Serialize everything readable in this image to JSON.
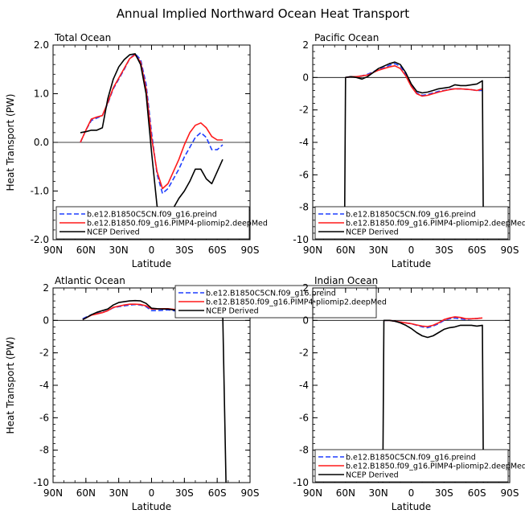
{
  "title": "Annual Implied Northward Ocean Heat Transport",
  "colors": {
    "preind": "#1f3fff",
    "pliomip": "#ff1a1a",
    "ncep": "#000000"
  },
  "chart_data": [
    {
      "type": "line",
      "title": "Total Ocean",
      "xlabel": "Latitude",
      "ylabel": "Heat Transport (PW)",
      "xlim": [
        -90,
        90
      ],
      "ylim": [
        -2,
        2
      ],
      "xticks": [
        "90N",
        "60N",
        "30N",
        "0",
        "30S",
        "60S",
        "90S"
      ],
      "yticks": [
        "2.0",
        "1.0",
        "0.0",
        "-1.0",
        "-2.0"
      ],
      "legend_position": "bottom-left",
      "series": [
        {
          "name": "b.e12.B1850C5CN.f09_g16.preind",
          "style": "dashed",
          "color": "#1f3fff",
          "x": [
            -65,
            -60,
            -55,
            -50,
            -45,
            -40,
            -35,
            -30,
            -25,
            -20,
            -15,
            -10,
            -5,
            0,
            5,
            10,
            15,
            20,
            25,
            30,
            35,
            40,
            45,
            50,
            55,
            60,
            65
          ],
          "y": [
            0.0,
            0.25,
            0.45,
            0.5,
            0.55,
            0.8,
            1.1,
            1.3,
            1.5,
            1.72,
            1.82,
            1.7,
            1.2,
            0.2,
            -0.65,
            -1.05,
            -0.95,
            -0.75,
            -0.55,
            -0.3,
            -0.1,
            0.1,
            0.2,
            0.1,
            -0.15,
            -0.15,
            -0.05
          ]
        },
        {
          "name": "b.e12.B1850.f09_g16.PIMP4-pliomip2.deepMed",
          "style": "solid",
          "color": "#ff1a1a",
          "x": [
            -65,
            -60,
            -55,
            -50,
            -45,
            -40,
            -35,
            -30,
            -25,
            -20,
            -15,
            -10,
            -5,
            0,
            5,
            10,
            15,
            20,
            25,
            30,
            35,
            40,
            45,
            50,
            55,
            60,
            65
          ],
          "y": [
            0.0,
            0.25,
            0.48,
            0.52,
            0.55,
            0.82,
            1.12,
            1.32,
            1.52,
            1.72,
            1.8,
            1.65,
            1.1,
            0.1,
            -0.6,
            -0.95,
            -0.85,
            -0.6,
            -0.35,
            -0.05,
            0.2,
            0.35,
            0.4,
            0.3,
            0.12,
            0.05,
            0.05
          ]
        },
        {
          "name": "NCEP Derived",
          "style": "solid",
          "color": "#000000",
          "x": [
            -65,
            -60,
            -55,
            -50,
            -45,
            -40,
            -35,
            -30,
            -25,
            -20,
            -15,
            -10,
            -5,
            0,
            5,
            10,
            15,
            20,
            25,
            30,
            35,
            40,
            45,
            50,
            55,
            60,
            65
          ],
          "y": [
            0.2,
            0.22,
            0.25,
            0.25,
            0.3,
            0.9,
            1.3,
            1.55,
            1.7,
            1.8,
            1.82,
            1.6,
            1.0,
            -0.2,
            -1.3,
            -1.65,
            -1.6,
            -1.35,
            -1.15,
            -1.0,
            -0.8,
            -0.55,
            -0.55,
            -0.75,
            -0.85,
            -0.6,
            -0.35
          ]
        }
      ]
    },
    {
      "type": "line",
      "title": "Pacific Ocean",
      "xlabel": "Latitude",
      "ylabel": "",
      "xlim": [
        -90,
        90
      ],
      "ylim": [
        -10,
        2
      ],
      "xticks": [
        "90N",
        "60N",
        "30N",
        "0",
        "30S",
        "60S",
        "90S"
      ],
      "yticks": [
        "2",
        "0",
        "-2",
        "-4",
        "-6",
        "-8",
        "-10"
      ],
      "legend_position": "bottom-left",
      "series": [
        {
          "name": "b.e12.B1850C5CN.f09_g16.preind",
          "style": "dashed",
          "color": "#1f3fff",
          "x": [
            -60,
            -55,
            -50,
            -45,
            -40,
            -35,
            -30,
            -25,
            -20,
            -15,
            -10,
            -5,
            0,
            5,
            10,
            15,
            20,
            25,
            30,
            35,
            40,
            45,
            50,
            55,
            60,
            65
          ],
          "y": [
            0.0,
            0.05,
            0.05,
            0.1,
            0.2,
            0.35,
            0.5,
            0.6,
            0.75,
            0.85,
            0.7,
            0.2,
            -0.5,
            -0.95,
            -1.1,
            -1.05,
            -0.95,
            -0.85,
            -0.8,
            -0.72,
            -0.7,
            -0.7,
            -0.72,
            -0.75,
            -0.8,
            -0.8
          ]
        },
        {
          "name": "b.e12.B1850.f09_g16.PIMP4-pliomip2.deepMed",
          "style": "solid",
          "color": "#ff1a1a",
          "x": [
            -60,
            -55,
            -50,
            -45,
            -40,
            -35,
            -30,
            -25,
            -20,
            -15,
            -10,
            -5,
            0,
            5,
            10,
            15,
            20,
            25,
            30,
            35,
            40,
            45,
            50,
            55,
            60,
            65
          ],
          "y": [
            0.0,
            0.05,
            0.05,
            0.1,
            0.15,
            0.3,
            0.45,
            0.55,
            0.65,
            0.72,
            0.55,
            0.1,
            -0.55,
            -1.0,
            -1.15,
            -1.1,
            -1.0,
            -0.9,
            -0.82,
            -0.75,
            -0.7,
            -0.7,
            -0.72,
            -0.75,
            -0.8,
            -0.7
          ]
        },
        {
          "name": "NCEP Derived",
          "style": "solid",
          "color": "#000000",
          "x": [
            -61,
            -60,
            -55,
            -50,
            -45,
            -40,
            -35,
            -30,
            -25,
            -20,
            -15,
            -10,
            -5,
            0,
            5,
            10,
            15,
            20,
            25,
            30,
            35,
            40,
            45,
            50,
            55,
            60,
            65,
            66
          ],
          "y": [
            -10,
            0.0,
            0.05,
            0.0,
            -0.1,
            0.05,
            0.3,
            0.55,
            0.7,
            0.85,
            0.95,
            0.8,
            0.3,
            -0.4,
            -0.85,
            -0.95,
            -0.9,
            -0.8,
            -0.7,
            -0.65,
            -0.6,
            -0.45,
            -0.5,
            -0.5,
            -0.45,
            -0.4,
            -0.2,
            -10
          ]
        }
      ]
    },
    {
      "type": "line",
      "title": "Atlantic Ocean",
      "xlabel": "Latitude",
      "ylabel": "Heat Transport (PW)",
      "xlim": [
        -90,
        90
      ],
      "ylim": [
        -10,
        2
      ],
      "xticks": [
        "90N",
        "60N",
        "30N",
        "0",
        "30S",
        "60S",
        "90S"
      ],
      "yticks": [
        "2",
        "0",
        "-2",
        "-4",
        "-6",
        "-8",
        "-10"
      ],
      "legend_position": "top-right",
      "series": [
        {
          "name": "b.e12.B1850C5CN.f09_g16.preind",
          "style": "dashed",
          "color": "#1f3fff",
          "x": [
            -63,
            -60,
            -55,
            -50,
            -45,
            -40,
            -35,
            -30,
            -25,
            -20,
            -15,
            -10,
            -5,
            0,
            5,
            10,
            15,
            20,
            25,
            30,
            35,
            40,
            45,
            50,
            55,
            60,
            65
          ],
          "y": [
            0.1,
            0.2,
            0.35,
            0.42,
            0.5,
            0.6,
            0.78,
            0.85,
            0.9,
            0.95,
            0.98,
            0.95,
            0.85,
            0.6,
            0.6,
            0.62,
            0.65,
            0.6,
            0.55,
            0.6,
            0.65,
            0.72,
            0.75,
            0.7,
            0.72,
            0.78,
            0.72
          ]
        },
        {
          "name": "b.e12.B1850.f09_g16.PIMP4-pliomip2.deepMed",
          "style": "solid",
          "color": "#ff1a1a",
          "x": [
            -63,
            -60,
            -55,
            -50,
            -45,
            -40,
            -35,
            -30,
            -25,
            -20,
            -15,
            -10,
            -5,
            0,
            5,
            10,
            15,
            20,
            25,
            30,
            35,
            40,
            45,
            50,
            55,
            60,
            65
          ],
          "y": [
            0.05,
            0.15,
            0.32,
            0.4,
            0.48,
            0.6,
            0.8,
            0.88,
            0.95,
            1.0,
            1.0,
            0.98,
            0.9,
            0.7,
            0.7,
            0.72,
            0.72,
            0.68,
            0.65,
            0.7,
            0.75,
            0.8,
            0.85,
            0.82,
            0.82,
            0.85,
            0.8
          ]
        },
        {
          "name": "NCEP Derived",
          "style": "solid",
          "color": "#000000",
          "x": [
            -63,
            -60,
            -55,
            -50,
            -45,
            -40,
            -35,
            -30,
            -25,
            -20,
            -15,
            -10,
            -5,
            0,
            5,
            10,
            15,
            20,
            25,
            30,
            35,
            40,
            45,
            50,
            55,
            60,
            65,
            68
          ],
          "y": [
            0.05,
            0.15,
            0.35,
            0.5,
            0.6,
            0.7,
            0.95,
            1.1,
            1.15,
            1.2,
            1.22,
            1.2,
            1.05,
            0.75,
            0.72,
            0.7,
            0.7,
            0.65,
            0.6,
            0.62,
            0.68,
            0.75,
            0.72,
            0.62,
            0.55,
            0.52,
            0.5,
            -10
          ]
        }
      ]
    },
    {
      "type": "line",
      "title": "Indian Ocean",
      "xlabel": "Latitude",
      "ylabel": "",
      "xlim": [
        -90,
        90
      ],
      "ylim": [
        -10,
        2
      ],
      "xticks": [
        "90N",
        "60N",
        "30N",
        "0",
        "30S",
        "60S",
        "90S"
      ],
      "yticks": [
        "2",
        "0",
        "-2",
        "-4",
        "-6",
        "-8",
        "-10"
      ],
      "legend_position": "bottom-left",
      "series": [
        {
          "name": "b.e12.B1850C5CN.f09_g16.preind",
          "style": "dashed",
          "color": "#1f3fff",
          "x": [
            -25,
            -20,
            -15,
            -10,
            -5,
            0,
            5,
            10,
            15,
            20,
            25,
            30,
            35,
            40,
            45,
            50,
            55,
            60,
            65
          ],
          "y": [
            0.0,
            0.0,
            -0.05,
            -0.1,
            -0.15,
            -0.2,
            -0.3,
            -0.4,
            -0.45,
            -0.35,
            -0.2,
            0.0,
            0.1,
            0.15,
            0.1,
            0.05,
            0.1,
            0.12,
            0.15
          ]
        },
        {
          "name": "b.e12.B1850.f09_g16.PIMP4-pliomip2.deepMed",
          "style": "solid",
          "color": "#ff1a1a",
          "x": [
            -25,
            -20,
            -15,
            -10,
            -5,
            0,
            5,
            10,
            15,
            20,
            25,
            30,
            35,
            40,
            45,
            50,
            55,
            60,
            65
          ],
          "y": [
            0.0,
            0.0,
            -0.05,
            -0.1,
            -0.15,
            -0.2,
            -0.28,
            -0.35,
            -0.38,
            -0.3,
            -0.15,
            0.05,
            0.15,
            0.22,
            0.18,
            0.1,
            0.1,
            0.12,
            0.15
          ]
        },
        {
          "name": "NCEP Derived",
          "style": "solid",
          "color": "#000000",
          "x": [
            -26,
            -25,
            -20,
            -15,
            -10,
            -5,
            0,
            5,
            10,
            15,
            20,
            25,
            30,
            35,
            40,
            45,
            50,
            55,
            60,
            65,
            66
          ],
          "y": [
            -10,
            0.0,
            0.0,
            -0.05,
            -0.15,
            -0.3,
            -0.5,
            -0.75,
            -0.95,
            -1.05,
            -0.95,
            -0.75,
            -0.55,
            -0.45,
            -0.4,
            -0.3,
            -0.3,
            -0.3,
            -0.35,
            -0.3,
            -10
          ]
        }
      ]
    }
  ]
}
